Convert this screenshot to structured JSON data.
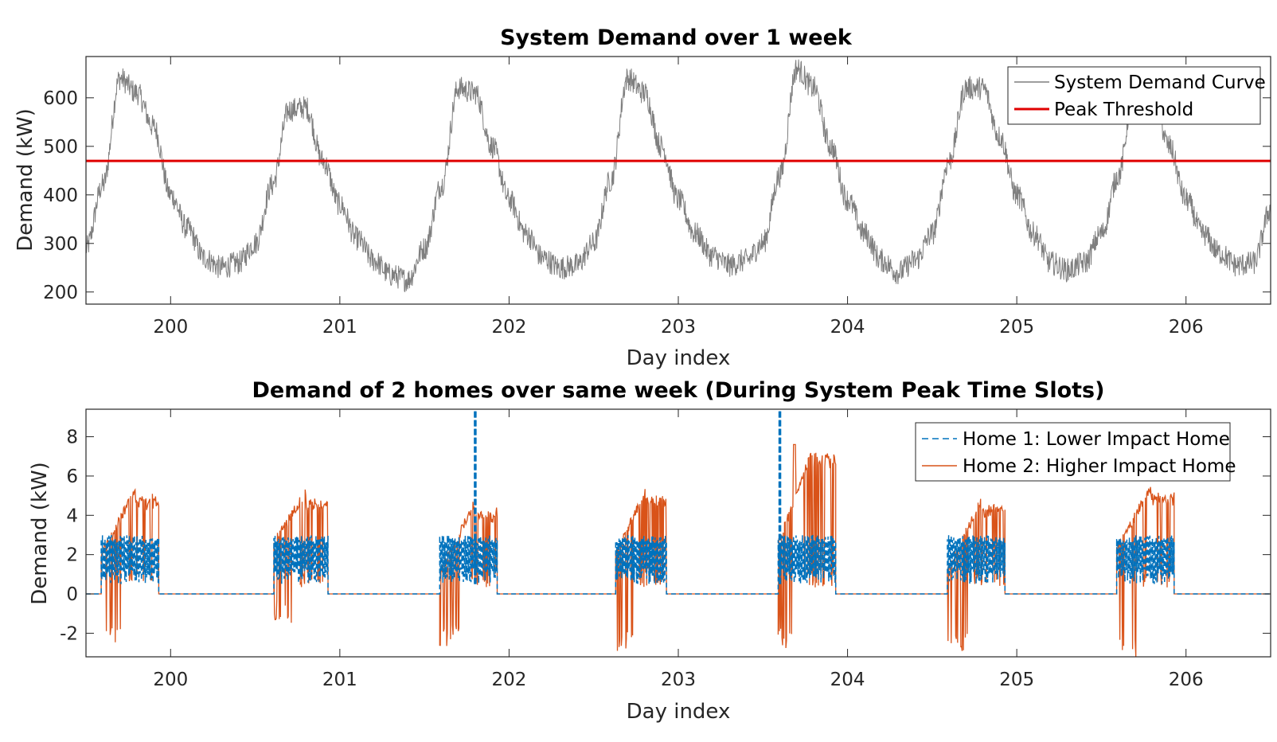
{
  "chart_data": [
    {
      "type": "line",
      "title": "System Demand over 1 week",
      "xlabel": "Day index",
      "ylabel": "Demand (kW)",
      "xlim": [
        199.5,
        206.5
      ],
      "ylim": [
        175,
        685
      ],
      "xticks": [
        "200",
        "201",
        "202",
        "203",
        "204",
        "205",
        "206"
      ],
      "yticks": [
        "200",
        "300",
        "400",
        "500",
        "600"
      ],
      "grid": false,
      "legend_position": "top-right",
      "series": [
        {
          "name": "System Demand Curve",
          "color": "#7f7f7f",
          "x": [
            199.5,
            199.6,
            199.7,
            199.8,
            199.9,
            200.0,
            200.1,
            200.2,
            200.3,
            200.4,
            200.5,
            200.6,
            200.7,
            200.8,
            200.9,
            201.0,
            201.1,
            201.2,
            201.3,
            201.4,
            201.5,
            201.6,
            201.7,
            201.8,
            201.9,
            202.0,
            202.1,
            202.2,
            202.3,
            202.4,
            202.5,
            202.6,
            202.7,
            202.8,
            202.9,
            203.0,
            203.1,
            203.2,
            203.3,
            203.4,
            203.5,
            203.6,
            203.7,
            203.8,
            203.9,
            204.0,
            204.1,
            204.2,
            204.3,
            204.4,
            204.5,
            204.6,
            204.7,
            204.8,
            204.9,
            205.0,
            205.1,
            205.2,
            205.3,
            205.4,
            205.5,
            205.6,
            205.7,
            205.8,
            205.9,
            206.0,
            206.1,
            206.2,
            206.3,
            206.4,
            206.5
          ],
          "y": [
            290,
            420,
            640,
            610,
            540,
            400,
            330,
            270,
            250,
            260,
            300,
            420,
            575,
            580,
            470,
            380,
            310,
            265,
            235,
            225,
            290,
            420,
            620,
            610,
            500,
            390,
            320,
            270,
            250,
            255,
            300,
            430,
            640,
            610,
            500,
            390,
            320,
            275,
            255,
            265,
            300,
            440,
            660,
            620,
            500,
            390,
            320,
            265,
            240,
            265,
            320,
            470,
            620,
            620,
            520,
            400,
            320,
            260,
            245,
            260,
            320,
            440,
            640,
            620,
            500,
            390,
            320,
            280,
            255,
            260,
            370
          ]
        },
        {
          "name": "Peak Threshold",
          "color": "#e00000",
          "x": [
            199.5,
            206.5
          ],
          "y": [
            470,
            470
          ]
        }
      ]
    },
    {
      "type": "line",
      "title": "Demand of 2 homes over same week (During System Peak Time Slots)",
      "xlabel": "Day index",
      "ylabel": "Demand (kW)",
      "xlim": [
        199.5,
        206.5
      ],
      "ylim": [
        -3.2,
        9.4
      ],
      "xticks": [
        "200",
        "201",
        "202",
        "203",
        "204",
        "205",
        "206"
      ],
      "yticks": [
        "-2",
        "0",
        "2",
        "4",
        "6",
        "8"
      ],
      "grid": false,
      "legend_position": "top-right",
      "peak_windows": [
        [
          199.59,
          199.93
        ],
        [
          200.61,
          200.93
        ],
        [
          201.59,
          201.93
        ],
        [
          202.63,
          202.93
        ],
        [
          203.59,
          203.93
        ],
        [
          204.59,
          204.93
        ],
        [
          205.59,
          205.93
        ]
      ],
      "series": [
        {
          "name": "Home 1: Lower Impact Home",
          "color": "#0072bd",
          "style": "dashed",
          "values_during_peak": "oscillating 0.5 to 3.0 kW",
          "spikes": [
            {
              "x": 201.8,
              "y": 9.4
            },
            {
              "x": 203.6,
              "y": 9.4
            }
          ],
          "off_peak_value": 0
        },
        {
          "name": "Home 2: Higher Impact Home",
          "color": "#d95319",
          "style": "solid",
          "peak_ramp": [
            {
              "day": 200,
              "start": 2.0,
              "max": 5.5,
              "min": -2.9
            },
            {
              "day": 201,
              "start": 2.6,
              "max": 5.4,
              "min": -1.5
            },
            {
              "day": 202,
              "start": 1.0,
              "max": 4.8,
              "min": -2.7
            },
            {
              "day": 203,
              "start": 2.0,
              "max": 5.5,
              "min": -3.0
            },
            {
              "day": 204,
              "start": 2.5,
              "max": 7.6,
              "min": -2.8
            },
            {
              "day": 205,
              "start": 1.2,
              "max": 5.0,
              "min": -2.9
            },
            {
              "day": 206,
              "start": 2.2,
              "max": 5.7,
              "min": -3.2
            }
          ],
          "off_peak_value": 0
        }
      ]
    }
  ]
}
